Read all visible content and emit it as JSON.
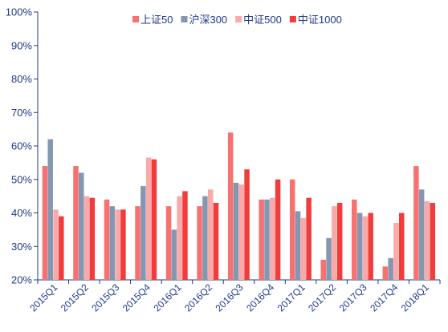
{
  "chart_data": {
    "type": "bar",
    "categories": [
      "2015Q1",
      "2015Q2",
      "2015Q3",
      "2015Q4",
      "2016Q1",
      "2016Q2",
      "2016Q3",
      "2016Q4",
      "2017Q1",
      "2017Q2",
      "2017Q3",
      "2017Q4",
      "2018Q1"
    ],
    "series": [
      {
        "name": "上证50",
        "color": "#f87171",
        "values": [
          54,
          54,
          44,
          42,
          42,
          42,
          64,
          44,
          50,
          26,
          44,
          24,
          54
        ]
      },
      {
        "name": "沪深300",
        "color": "#8497b0",
        "values": [
          62,
          52,
          42,
          48,
          35,
          45,
          49,
          44,
          40.5,
          32.5,
          40,
          26.5,
          47
        ]
      },
      {
        "name": "中证500",
        "color": "#f8aaaa",
        "values": [
          41,
          45,
          41,
          56.5,
          45,
          47,
          48.5,
          44.5,
          38.5,
          42,
          39,
          37,
          43.5
        ]
      },
      {
        "name": "中证1000",
        "color": "#f23c3c",
        "values": [
          39,
          44.5,
          41,
          56,
          46.5,
          43,
          53,
          50,
          44.5,
          43,
          40,
          40,
          43
        ]
      }
    ],
    "y_ticks": [
      "20%",
      "30%",
      "40%",
      "50%",
      "60%",
      "70%",
      "80%",
      "90%",
      "100%"
    ],
    "ylim": [
      20,
      100
    ],
    "legend_position": "top-center",
    "grid": false
  }
}
